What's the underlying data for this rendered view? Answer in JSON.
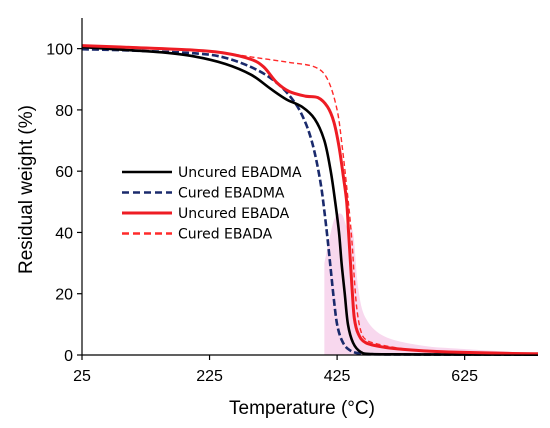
{
  "chart_data": {
    "type": "line",
    "xlabel": "Temperature (°C)",
    "ylabel": "Residual weight (%)",
    "xlim": [
      25,
      740
    ],
    "ylim": [
      0,
      110
    ],
    "x_ticks": [
      25,
      225,
      425,
      625
    ],
    "y_ticks": [
      0,
      20,
      40,
      60,
      80,
      100
    ],
    "grid": false,
    "legend_placement": "center-left",
    "series": [
      {
        "name": "Uncured EBADMA",
        "color": "#000000",
        "dash": "solid",
        "points": [
          [
            25,
            100.5
          ],
          [
            100,
            99.5
          ],
          [
            150,
            98.8
          ],
          [
            200,
            97.5
          ],
          [
            250,
            95
          ],
          [
            290,
            91.5
          ],
          [
            320,
            87
          ],
          [
            345,
            83.5
          ],
          [
            370,
            81
          ],
          [
            390,
            77
          ],
          [
            405,
            70
          ],
          [
            415,
            60
          ],
          [
            422,
            50
          ],
          [
            428,
            40
          ],
          [
            432,
            30
          ],
          [
            437,
            20
          ],
          [
            442,
            10
          ],
          [
            450,
            4
          ],
          [
            462,
            1
          ],
          [
            480,
            0.3
          ],
          [
            550,
            0.2
          ],
          [
            740,
            0.1
          ]
        ]
      },
      {
        "name": "Cured EBADMA",
        "color": "#1a2a6c",
        "dash": "dashed",
        "points": [
          [
            25,
            99.8
          ],
          [
            100,
            99.4
          ],
          [
            200,
            98.5
          ],
          [
            250,
            97
          ],
          [
            300,
            93
          ],
          [
            335,
            88
          ],
          [
            360,
            82
          ],
          [
            375,
            76
          ],
          [
            385,
            70
          ],
          [
            393,
            63
          ],
          [
            400,
            55
          ],
          [
            405,
            47
          ],
          [
            410,
            38
          ],
          [
            415,
            28
          ],
          [
            420,
            18
          ],
          [
            425,
            10
          ],
          [
            432,
            5
          ],
          [
            442,
            2
          ],
          [
            460,
            0.5
          ],
          [
            500,
            0.2
          ],
          [
            740,
            0.1
          ]
        ]
      },
      {
        "name": "Uncured EBADA",
        "color": "#ee1c24",
        "dash": "solid",
        "points": [
          [
            25,
            101
          ],
          [
            100,
            100.4
          ],
          [
            200,
            99.5
          ],
          [
            250,
            98.5
          ],
          [
            290,
            96.5
          ],
          [
            310,
            94
          ],
          [
            330,
            89
          ],
          [
            350,
            86
          ],
          [
            375,
            84.5
          ],
          [
            395,
            84
          ],
          [
            410,
            81
          ],
          [
            420,
            76
          ],
          [
            428,
            68
          ],
          [
            435,
            58
          ],
          [
            440,
            50
          ],
          [
            443,
            40
          ],
          [
            446,
            30
          ],
          [
            449,
            20
          ],
          [
            452,
            12
          ],
          [
            458,
            7
          ],
          [
            470,
            4
          ],
          [
            500,
            2.5
          ],
          [
            550,
            1.5
          ],
          [
            600,
            1
          ],
          [
            700,
            0.5
          ],
          [
            740,
            0.4
          ]
        ]
      },
      {
        "name": "Cured EBADA",
        "color": "#ff2a2a",
        "dash": "dashed",
        "points": [
          [
            25,
            101
          ],
          [
            100,
            100.3
          ],
          [
            200,
            99.5
          ],
          [
            250,
            98.5
          ],
          [
            300,
            97
          ],
          [
            350,
            95.5
          ],
          [
            390,
            94
          ],
          [
            410,
            90
          ],
          [
            425,
            80
          ],
          [
            433,
            68
          ],
          [
            440,
            55
          ],
          [
            445,
            45
          ],
          [
            449,
            35
          ],
          [
            452,
            25
          ],
          [
            456,
            15
          ],
          [
            462,
            8
          ],
          [
            470,
            5
          ],
          [
            490,
            3.5
          ],
          [
            530,
            2
          ],
          [
            580,
            1.3
          ],
          [
            650,
            0.7
          ],
          [
            740,
            0.4
          ]
        ]
      }
    ],
    "shading": {
      "name": "",
      "color": "#f3b8e0",
      "points": [
        [
          405,
          30
        ],
        [
          420,
          44
        ],
        [
          432,
          46
        ],
        [
          440,
          42
        ],
        [
          450,
          40
        ],
        [
          458,
          22
        ],
        [
          470,
          12
        ],
        [
          500,
          6
        ],
        [
          560,
          3
        ],
        [
          620,
          2
        ],
        [
          700,
          1
        ],
        [
          740,
          0.5
        ]
      ]
    }
  }
}
